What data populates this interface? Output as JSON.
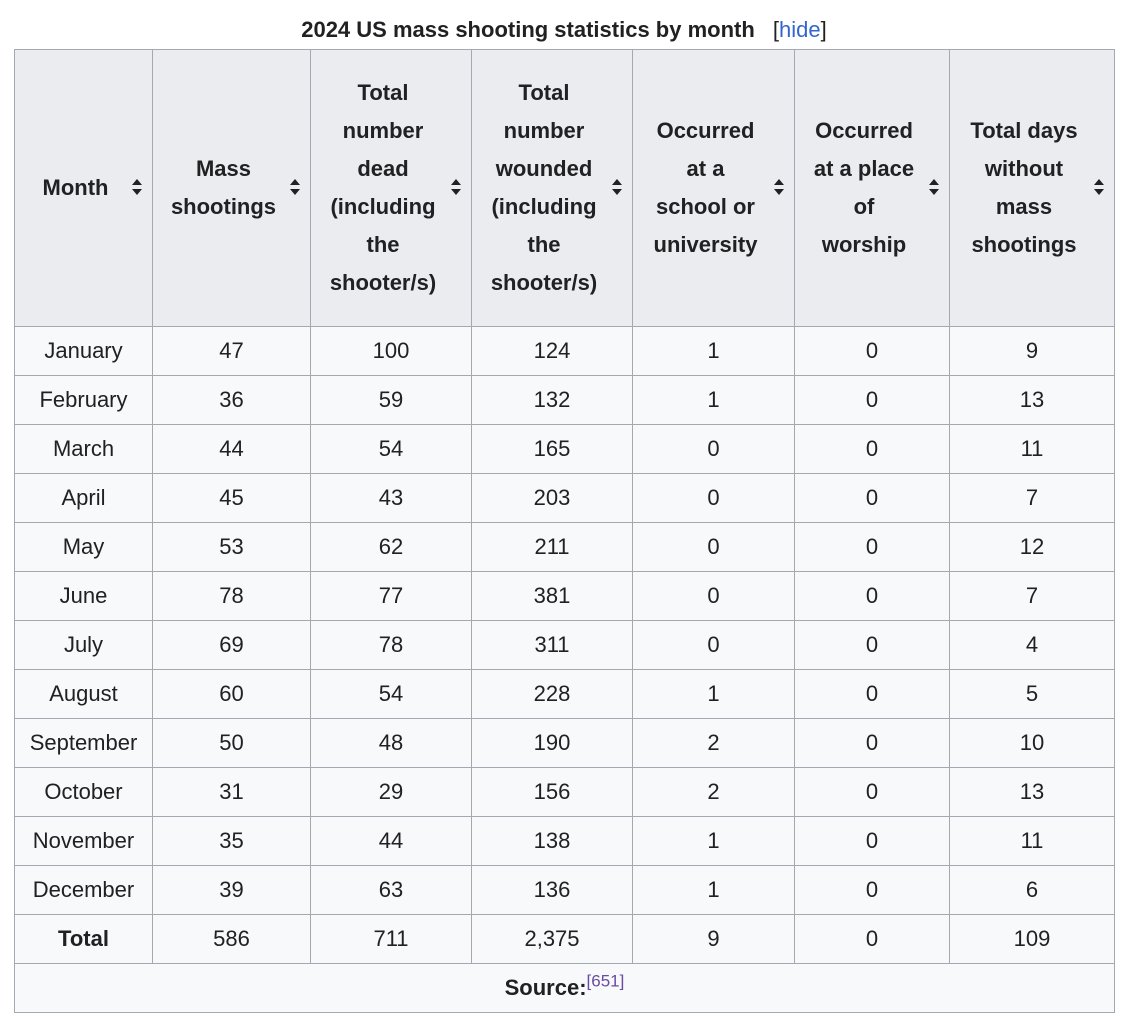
{
  "caption": {
    "title": "2024 US mass shooting statistics by month",
    "toggle_open": "[",
    "toggle_label": "hide",
    "toggle_close": "]"
  },
  "columns": [
    {
      "label_lines": [
        "Month"
      ]
    },
    {
      "label_lines": [
        "Mass",
        "shootings"
      ]
    },
    {
      "label_lines": [
        "Total",
        "number",
        "dead",
        "(including",
        "the",
        "shooter/s)"
      ]
    },
    {
      "label_lines": [
        "Total",
        "number",
        "wounded",
        "(including",
        "the",
        "shooter/s)"
      ]
    },
    {
      "label_lines": [
        "Occurred",
        "at a",
        "school or",
        "university"
      ]
    },
    {
      "label_lines": [
        "Occurred",
        "at a place",
        "of",
        "worship"
      ]
    },
    {
      "label_lines": [
        "Total days",
        "without",
        "mass",
        "shootings"
      ]
    }
  ],
  "rows": [
    [
      "January",
      "47",
      "100",
      "124",
      "1",
      "0",
      "9"
    ],
    [
      "February",
      "36",
      "59",
      "132",
      "1",
      "0",
      "13"
    ],
    [
      "March",
      "44",
      "54",
      "165",
      "0",
      "0",
      "11"
    ],
    [
      "April",
      "45",
      "43",
      "203",
      "0",
      "0",
      "7"
    ],
    [
      "May",
      "53",
      "62",
      "211",
      "0",
      "0",
      "12"
    ],
    [
      "June",
      "78",
      "77",
      "381",
      "0",
      "0",
      "7"
    ],
    [
      "July",
      "69",
      "78",
      "311",
      "0",
      "0",
      "4"
    ],
    [
      "August",
      "60",
      "54",
      "228",
      "1",
      "0",
      "5"
    ],
    [
      "September",
      "50",
      "48",
      "190",
      "2",
      "0",
      "10"
    ],
    [
      "October",
      "31",
      "29",
      "156",
      "2",
      "0",
      "13"
    ],
    [
      "November",
      "35",
      "44",
      "138",
      "1",
      "0",
      "11"
    ],
    [
      "December",
      "39",
      "63",
      "136",
      "1",
      "0",
      "6"
    ]
  ],
  "total_row": [
    "Total",
    "586",
    "711",
    "2,375",
    "9",
    "0",
    "109"
  ],
  "footer": {
    "source_label": "Source:",
    "ref": "[651]"
  }
}
